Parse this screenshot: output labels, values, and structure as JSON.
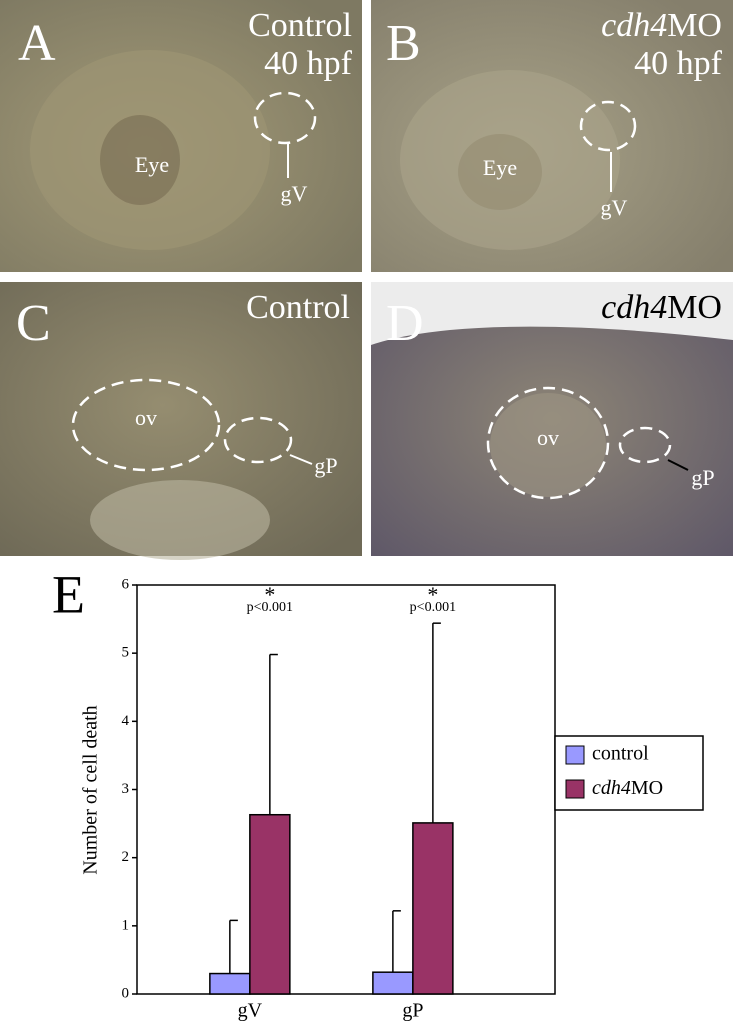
{
  "panels": [
    {
      "letter": "A",
      "condition": "Control",
      "stage": "40 hpf",
      "structure": "Eye",
      "ganglion": "gV"
    },
    {
      "letter": "B",
      "condition": "cdh4MO",
      "stage": "40 hpf",
      "structure": "Eye",
      "ganglion": "gV"
    },
    {
      "letter": "C",
      "condition": "Control",
      "structure": "ov",
      "ganglion": "gP"
    },
    {
      "letter": "D",
      "condition": "cdh4MO",
      "structure": "ov",
      "ganglion": "gP"
    }
  ],
  "chart_data": {
    "type": "bar",
    "panel_label": "E",
    "y_label": "Number of cell death",
    "categories": [
      "gV",
      "gP"
    ],
    "series": [
      {
        "name": "control",
        "color": "#9999ff",
        "values": [
          0.3,
          0.32
        ],
        "errors": [
          0.78,
          0.9
        ]
      },
      {
        "name": "cdh4MO",
        "color": "#993366",
        "values": [
          2.63,
          2.51
        ],
        "errors": [
          2.35,
          2.93
        ]
      }
    ],
    "significance": [
      "*",
      "*"
    ],
    "p_values": [
      "p<0.001",
      "p<0.001"
    ],
    "ylim": [
      0,
      6
    ],
    "yticks": [
      0,
      1,
      2,
      3,
      4,
      5,
      6
    ],
    "grid": false,
    "legend": "right"
  }
}
